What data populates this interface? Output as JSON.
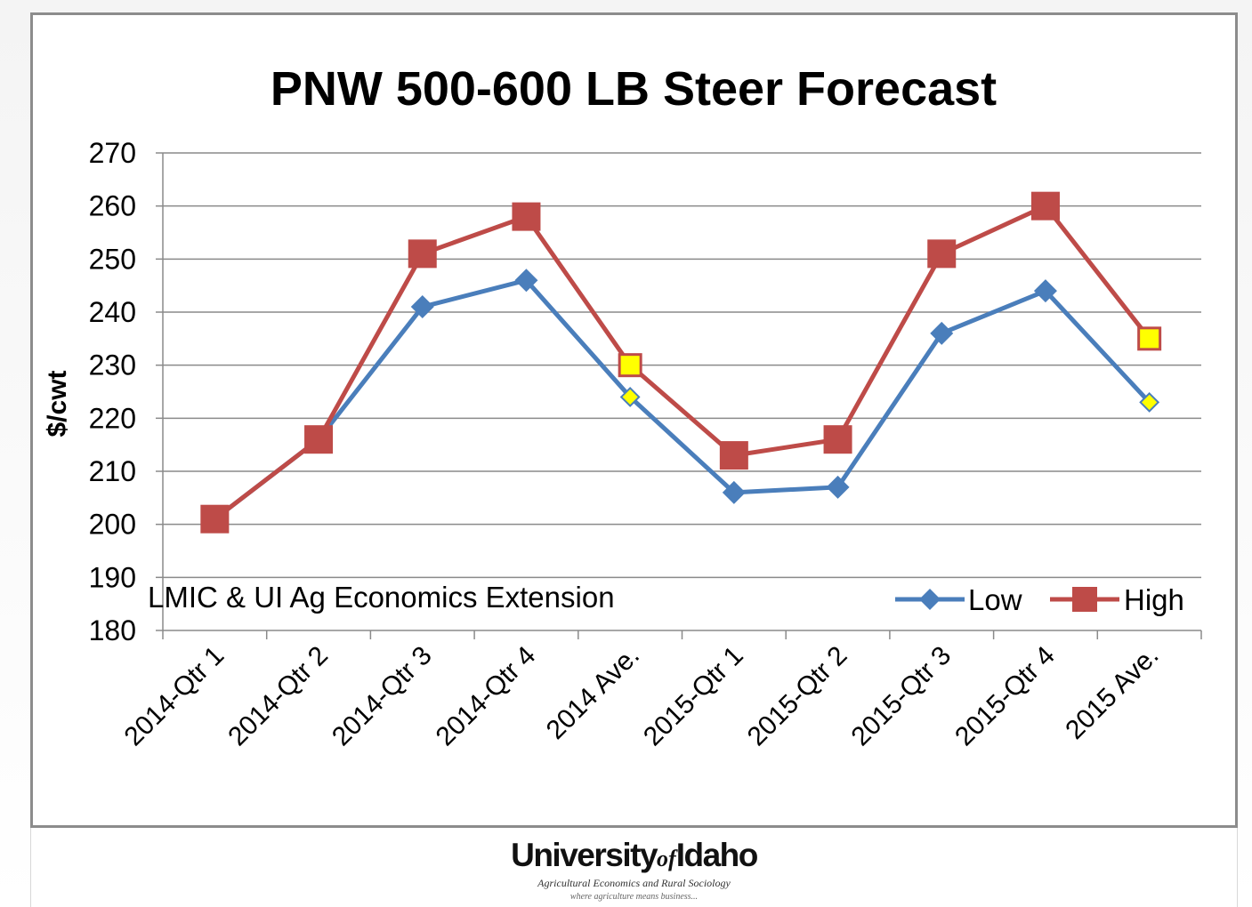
{
  "chart_data": {
    "type": "line",
    "title": "PNW 500-600 LB Steer Forecast",
    "ylabel": "$/cwt",
    "xlabel": "",
    "ylim": [
      180,
      270
    ],
    "yticks": [
      180,
      190,
      200,
      210,
      220,
      230,
      240,
      250,
      260,
      270
    ],
    "categories": [
      "2014-Qtr 1",
      "2014-Qtr 2",
      "2014-Qtr 3",
      "2014-Qtr 4",
      "2014 Ave.",
      "2015-Qtr 1",
      "2015-Qtr 2",
      "2015-Qtr 3",
      "2015-Qtr 4",
      "2015 Ave."
    ],
    "series": [
      {
        "name": "Low",
        "color": "#4a7ebb",
        "marker": "diamond",
        "values": [
          201,
          216,
          241,
          246,
          224,
          206,
          207,
          236,
          244,
          223
        ]
      },
      {
        "name": "High",
        "color": "#be4b48",
        "marker": "square",
        "values": [
          201,
          216,
          251,
          258,
          230,
          213,
          216,
          251,
          260,
          235
        ]
      }
    ],
    "highlight_categories": [
      "2014 Ave.",
      "2015 Ave."
    ],
    "highlight_color": "#ffff00",
    "grid": true,
    "legend_position": "bottom-right",
    "annotation": "LMIC & UI Ag Economics Extension"
  },
  "footer": {
    "logo_university": "University",
    "logo_of": "of",
    "logo_idaho": "Idaho",
    "department": "Agricultural Economics and Rural Sociology",
    "tagline": "where agriculture means business..."
  }
}
